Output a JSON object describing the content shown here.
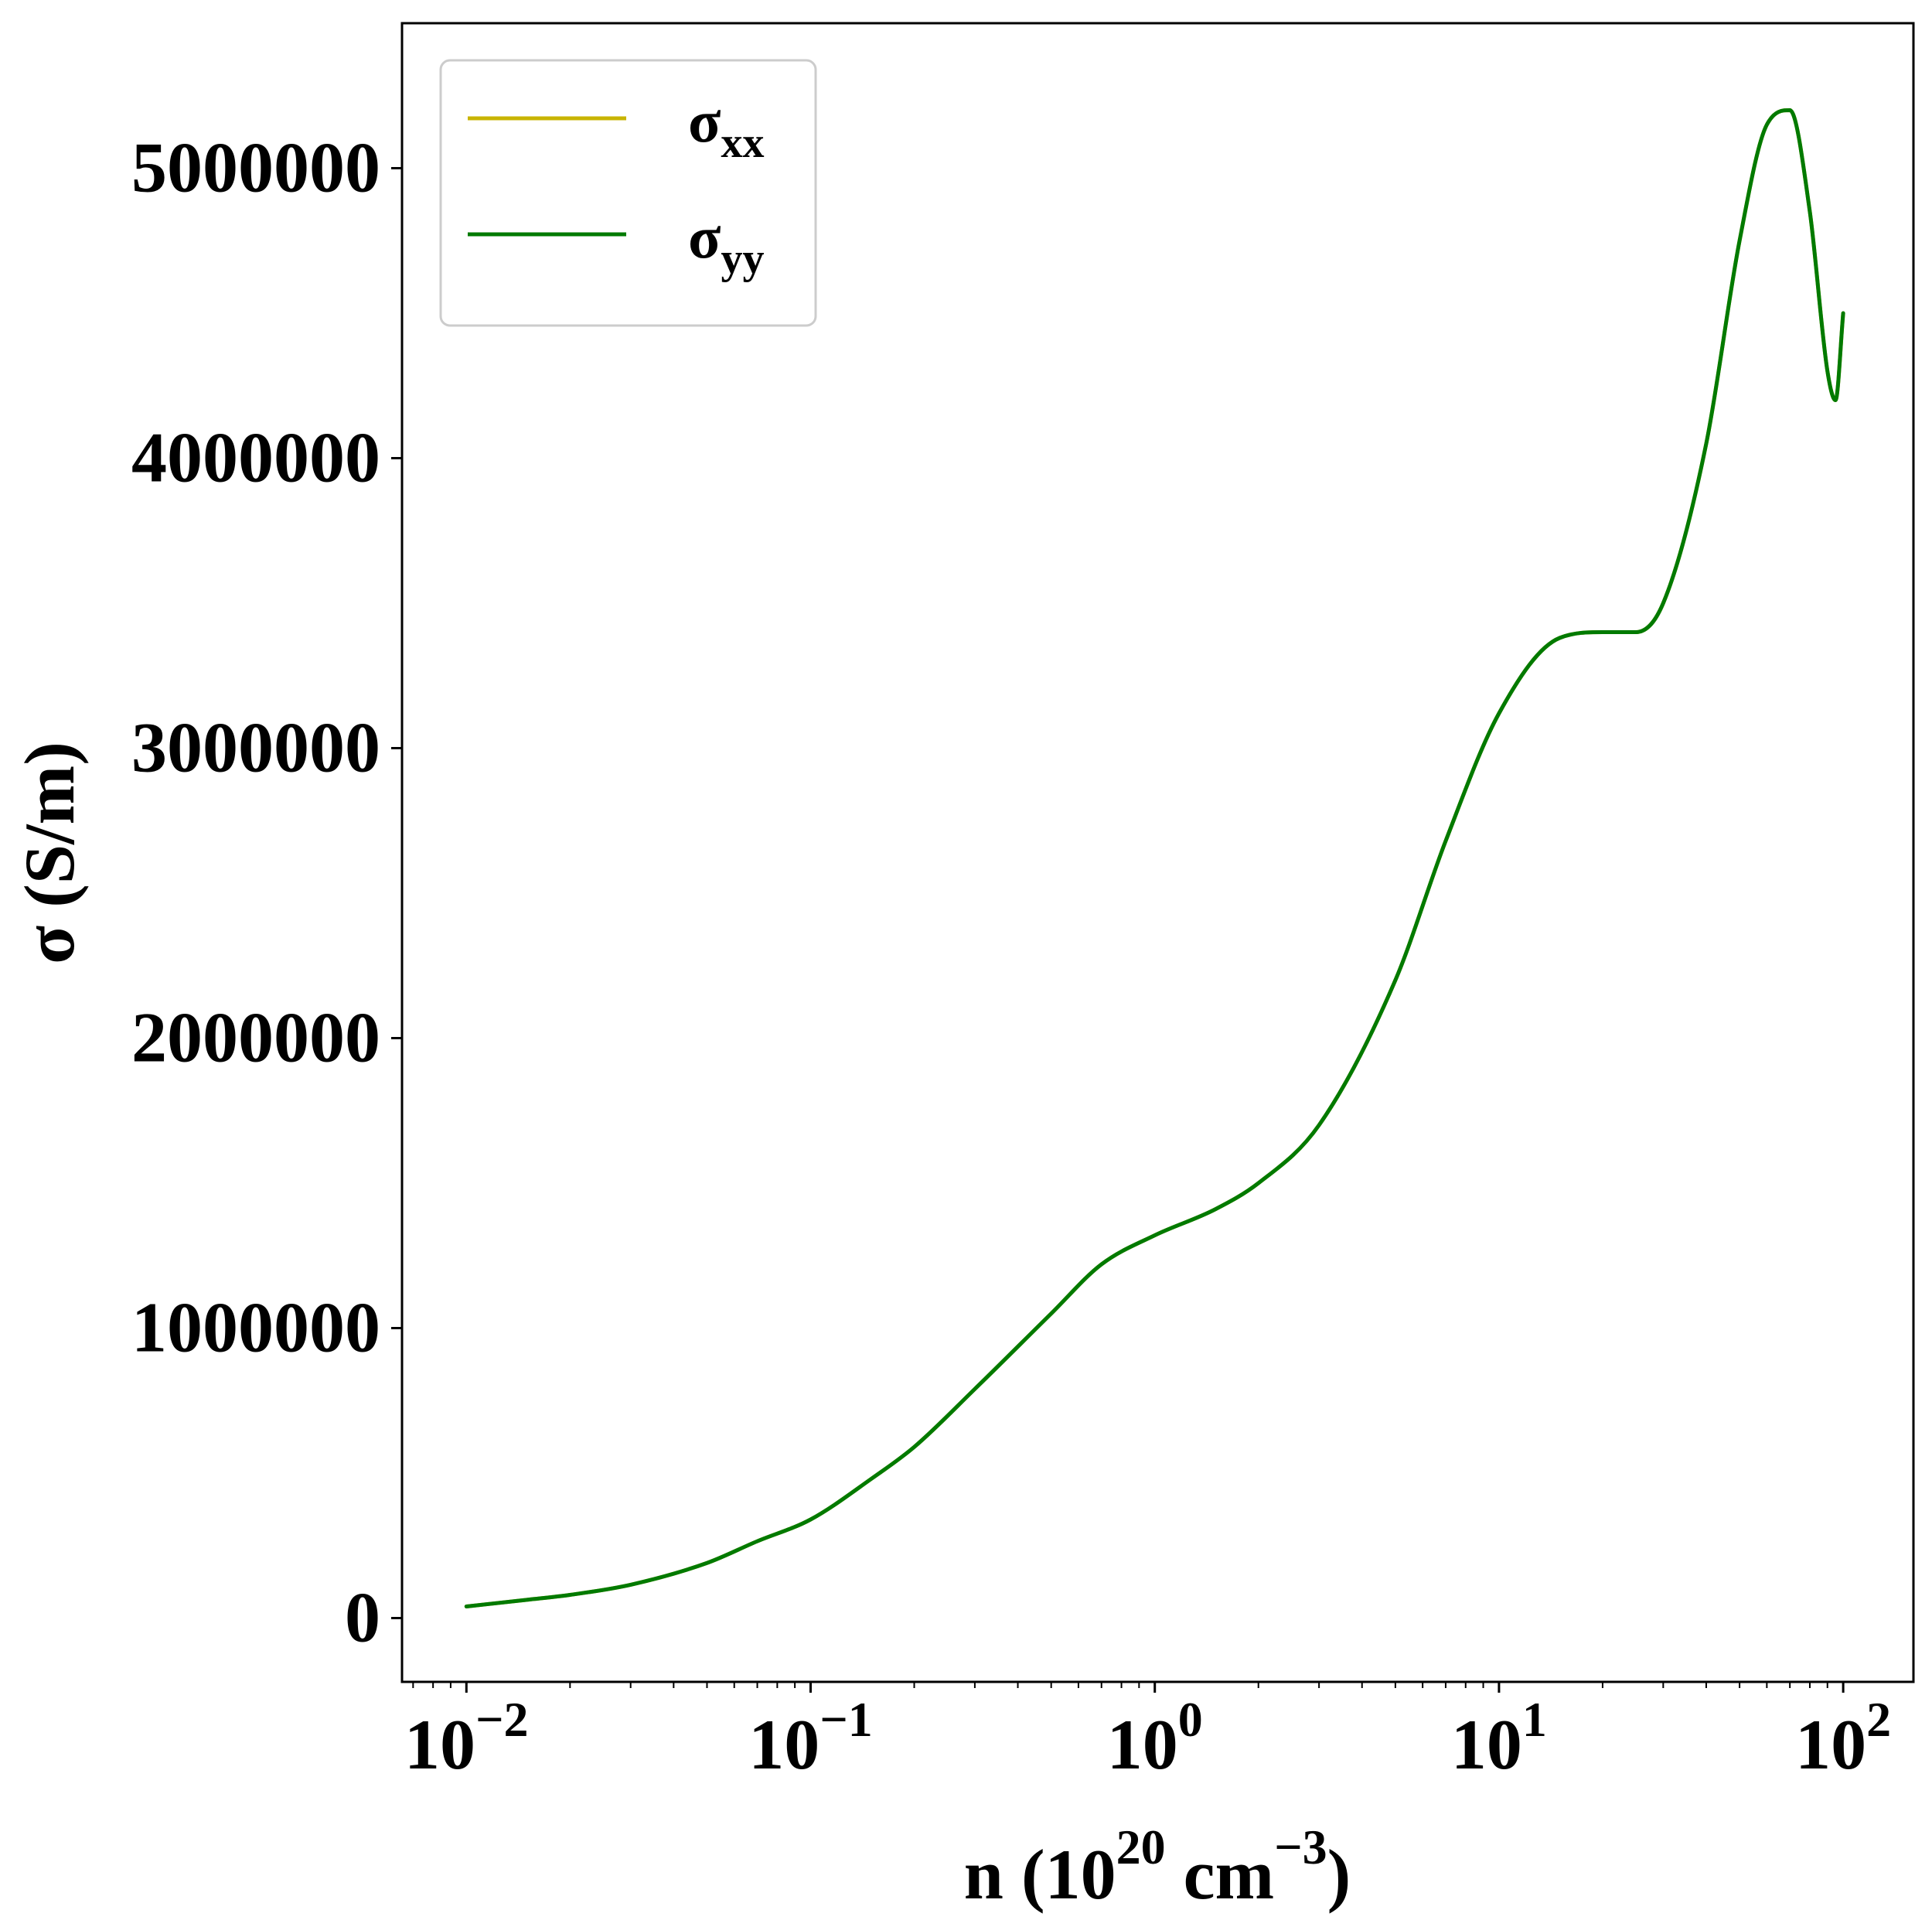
{
  "chart_data": {
    "type": "line",
    "xscale": "log",
    "xlim": [
      0.0065,
      160
    ],
    "ylim": [
      -220000,
      5500000
    ],
    "xlabel_main": "n (10",
    "xlabel_exp1": "20",
    "xlabel_unit": " cm",
    "xlabel_exp2": "−3",
    "xlabel_close": ")",
    "ylabel": "σ (S/m)",
    "xticks": [
      {
        "value": 0.01,
        "base": "10",
        "exp": "−2"
      },
      {
        "value": 0.1,
        "base": "10",
        "exp": "−1"
      },
      {
        "value": 1,
        "base": "10",
        "exp": "0"
      },
      {
        "value": 10,
        "base": "10",
        "exp": "1"
      },
      {
        "value": 100,
        "base": "10",
        "exp": "2"
      }
    ],
    "yticks": [
      {
        "value": 0,
        "label": "0"
      },
      {
        "value": 1000000,
        "label": "1000000"
      },
      {
        "value": 2000000,
        "label": "2000000"
      },
      {
        "value": 3000000,
        "label": "3000000"
      },
      {
        "value": 4000000,
        "label": "4000000"
      },
      {
        "value": 5000000,
        "label": "5000000"
      }
    ],
    "legend_position": "top-left",
    "series": [
      {
        "name": "σ",
        "subscript": "xx",
        "color": "#c8b400",
        "x": [
          0.01,
          0.015,
          0.02,
          0.03,
          0.05,
          0.07,
          0.1,
          0.15,
          0.2,
          0.3,
          0.5,
          0.7,
          1,
          1.5,
          2,
          3,
          5,
          7,
          10,
          15,
          20,
          25,
          30,
          40,
          50,
          60,
          70,
          80,
          90,
          95,
          100
        ],
        "y": [
          40000,
          63000,
          80000,
          115000,
          190000,
          265000,
          340000,
          480000,
          590000,
          790000,
          1050000,
          1220000,
          1320000,
          1410000,
          1500000,
          1700000,
          2200000,
          2680000,
          3120000,
          3380000,
          3400000,
          3400000,
          3500000,
          4050000,
          4750000,
          5150000,
          5200000,
          4850000,
          4300000,
          4200000,
          4500000
        ]
      },
      {
        "name": "σ",
        "subscript": "yy",
        "color": "#007a00",
        "x": [
          0.01,
          0.015,
          0.02,
          0.03,
          0.05,
          0.07,
          0.1,
          0.15,
          0.2,
          0.3,
          0.5,
          0.7,
          1,
          1.5,
          2,
          3,
          5,
          7,
          10,
          15,
          20,
          25,
          30,
          40,
          50,
          60,
          70,
          80,
          90,
          95,
          100
        ],
        "y": [
          40000,
          63000,
          80000,
          115000,
          190000,
          265000,
          340000,
          480000,
          590000,
          790000,
          1050000,
          1220000,
          1320000,
          1410000,
          1500000,
          1700000,
          2200000,
          2680000,
          3120000,
          3380000,
          3400000,
          3400000,
          3500000,
          4050000,
          4750000,
          5150000,
          5200000,
          4850000,
          4300000,
          4200000,
          4500000
        ]
      }
    ]
  }
}
